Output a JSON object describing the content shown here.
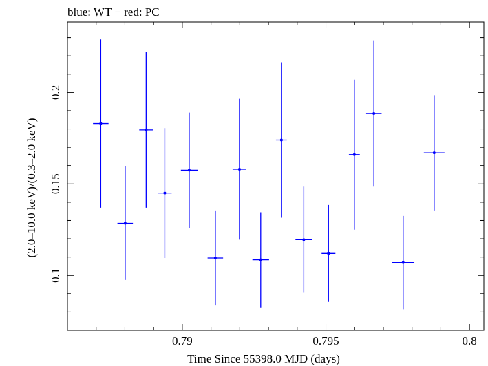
{
  "chart_data": {
    "type": "scatter",
    "title": "blue: WT − red: PC",
    "xlabel": "Time Since 55398.0 MJD (days)",
    "ylabel": "(2.0–10.0 keV)/(0.3–2.0 keV)",
    "xlim": [
      0.786,
      0.8005
    ],
    "ylim": [
      0.07,
      0.2385
    ],
    "x_ticks": [
      {
        "value": 0.79,
        "label": "0.79"
      },
      {
        "value": 0.795,
        "label": "0.795"
      },
      {
        "value": 0.8,
        "label": "0.8"
      }
    ],
    "y_ticks": [
      {
        "value": 0.1,
        "label": "0.1"
      },
      {
        "value": 0.15,
        "label": "0.15"
      },
      {
        "value": 0.2,
        "label": "0.2"
      }
    ],
    "x_minor_step": 0.001,
    "y_minor_step": 0.01,
    "grid": false,
    "series": [
      {
        "name": "WT",
        "color": "#0000ff",
        "points": [
          {
            "x": 0.78716,
            "xerr": 0.00027,
            "y": 0.183,
            "yerr_lo": 0.046,
            "yerr_hi": 0.046
          },
          {
            "x": 0.78801,
            "xerr": 0.00027,
            "y": 0.1285,
            "yerr_lo": 0.031,
            "yerr_hi": 0.031
          },
          {
            "x": 0.78874,
            "xerr": 0.00024,
            "y": 0.1795,
            "yerr_lo": 0.0425,
            "yerr_hi": 0.0425
          },
          {
            "x": 0.78939,
            "xerr": 0.00024,
            "y": 0.145,
            "yerr_lo": 0.0355,
            "yerr_hi": 0.0355
          },
          {
            "x": 0.79024,
            "xerr": 0.00029,
            "y": 0.1575,
            "yerr_lo": 0.0315,
            "yerr_hi": 0.0315
          },
          {
            "x": 0.79115,
            "xerr": 0.00027,
            "y": 0.1095,
            "yerr_lo": 0.026,
            "yerr_hi": 0.026
          },
          {
            "x": 0.79199,
            "xerr": 0.00024,
            "y": 0.158,
            "yerr_lo": 0.0385,
            "yerr_hi": 0.0385
          },
          {
            "x": 0.79273,
            "xerr": 0.00029,
            "y": 0.1085,
            "yerr_lo": 0.026,
            "yerr_hi": 0.026
          },
          {
            "x": 0.79345,
            "xerr": 0.00019,
            "y": 0.174,
            "yerr_lo": 0.0425,
            "yerr_hi": 0.0425
          },
          {
            "x": 0.79423,
            "xerr": 0.00029,
            "y": 0.1195,
            "yerr_lo": 0.029,
            "yerr_hi": 0.029
          },
          {
            "x": 0.79509,
            "xerr": 0.00024,
            "y": 0.112,
            "yerr_lo": 0.0265,
            "yerr_hi": 0.0265
          },
          {
            "x": 0.79599,
            "xerr": 0.00019,
            "y": 0.166,
            "yerr_lo": 0.041,
            "yerr_hi": 0.041
          },
          {
            "x": 0.79667,
            "xerr": 0.00027,
            "y": 0.1885,
            "yerr_lo": 0.04,
            "yerr_hi": 0.04
          },
          {
            "x": 0.79769,
            "xerr": 0.00039,
            "y": 0.107,
            "yerr_lo": 0.0255,
            "yerr_hi": 0.0255
          },
          {
            "x": 0.79877,
            "xerr": 0.00036,
            "y": 0.167,
            "yerr_lo": 0.0315,
            "yerr_hi": 0.0315
          }
        ]
      }
    ]
  }
}
